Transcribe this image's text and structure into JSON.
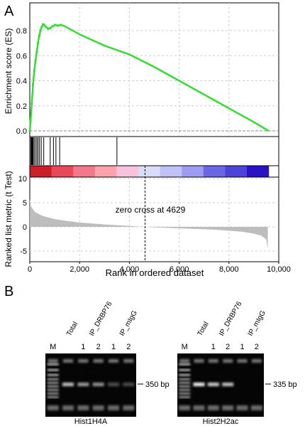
{
  "panel_a": {
    "letter": "A",
    "zero_cross_text": "zero cross at 4629"
  },
  "panel_b": {
    "letter": "B",
    "gels": [
      {
        "name": "Hist1H4A",
        "marker": "M",
        "lane_headers": [
          "Total",
          "IP_DRBP76",
          "IP_mIgG"
        ],
        "replicates": [
          "1",
          "2",
          "1",
          "2"
        ],
        "band_label": "350 bp",
        "band_intensity": [
          0.7,
          0.5,
          0.45,
          0.1,
          0.08
        ]
      },
      {
        "name": "Hist2H2ac",
        "marker": "M",
        "lane_headers": [
          "Total",
          "IP_DRBP76",
          "IP_mIgG"
        ],
        "replicates": [
          "1",
          "2",
          "1",
          "2"
        ],
        "band_label": "335 bp",
        "band_intensity": [
          0.95,
          0.75,
          0.7,
          0.0,
          0.0
        ]
      }
    ]
  },
  "chart_data": [
    {
      "type": "line",
      "ylabel": "Enrichment score (ES)",
      "ylim": [
        0,
        0.9
      ],
      "yticks": [
        "0.0",
        "0.2",
        "0.4",
        "0.6",
        "0.8"
      ],
      "xlim": [
        0,
        10000
      ],
      "grid": true,
      "line_color": "#33dd33",
      "x": [
        0,
        30,
        80,
        130,
        180,
        230,
        280,
        330,
        380,
        430,
        480,
        530,
        580,
        650,
        730,
        820,
        920,
        1020,
        1130,
        1250,
        1400,
        2000,
        3000,
        4000,
        5000,
        6000,
        7000,
        8000,
        9000,
        9590
      ],
      "y": [
        0,
        0.08,
        0.22,
        0.37,
        0.48,
        0.56,
        0.63,
        0.7,
        0.76,
        0.8,
        0.83,
        0.85,
        0.845,
        0.83,
        0.815,
        0.82,
        0.835,
        0.845,
        0.84,
        0.845,
        0.835,
        0.77,
        0.68,
        0.61,
        0.51,
        0.4,
        0.29,
        0.18,
        0.07,
        0.0
      ]
    },
    {
      "type": "bar",
      "ylabel": "Ranked list metric (t Test)",
      "xlabel": "Rank in ordered dataset",
      "ylim": [
        -5,
        10
      ],
      "yticks": [
        "10",
        "5",
        "0",
        "-5"
      ],
      "xlim": [
        0,
        10000
      ],
      "xticks": [
        "0",
        "2,000",
        "4,000",
        "6,000",
        "8,000",
        "10,000"
      ],
      "zero_cross": 4629,
      "hits": [
        40,
        70,
        100,
        130,
        170,
        220,
        280,
        330,
        390,
        460,
        560,
        820,
        950,
        1050,
        1200,
        3500
      ],
      "heatmap_colors": [
        "#cc1f2b",
        "#e84958",
        "#f2788a",
        "#fda2ad",
        "#f8c2de",
        "#d9dcf8",
        "#c0c1f4",
        "#9d9cf0",
        "#6c66e6",
        "#4c44d9",
        "#2a12c6"
      ],
      "x": [
        0,
        50,
        200,
        500,
        1000,
        1500,
        2000,
        2500,
        3000,
        3500,
        4000,
        4629,
        5000,
        5500,
        6000,
        6500,
        7000,
        7500,
        8000,
        8500,
        9000,
        9300,
        9500,
        9560
      ],
      "values": [
        5.8,
        4.2,
        3.1,
        2.3,
        1.6,
        1.2,
        0.9,
        0.7,
        0.5,
        0.35,
        0.18,
        0.0,
        -0.1,
        -0.2,
        -0.3,
        -0.4,
        -0.5,
        -0.6,
        -0.8,
        -1.0,
        -1.4,
        -1.8,
        -2.6,
        -4.6
      ]
    }
  ]
}
